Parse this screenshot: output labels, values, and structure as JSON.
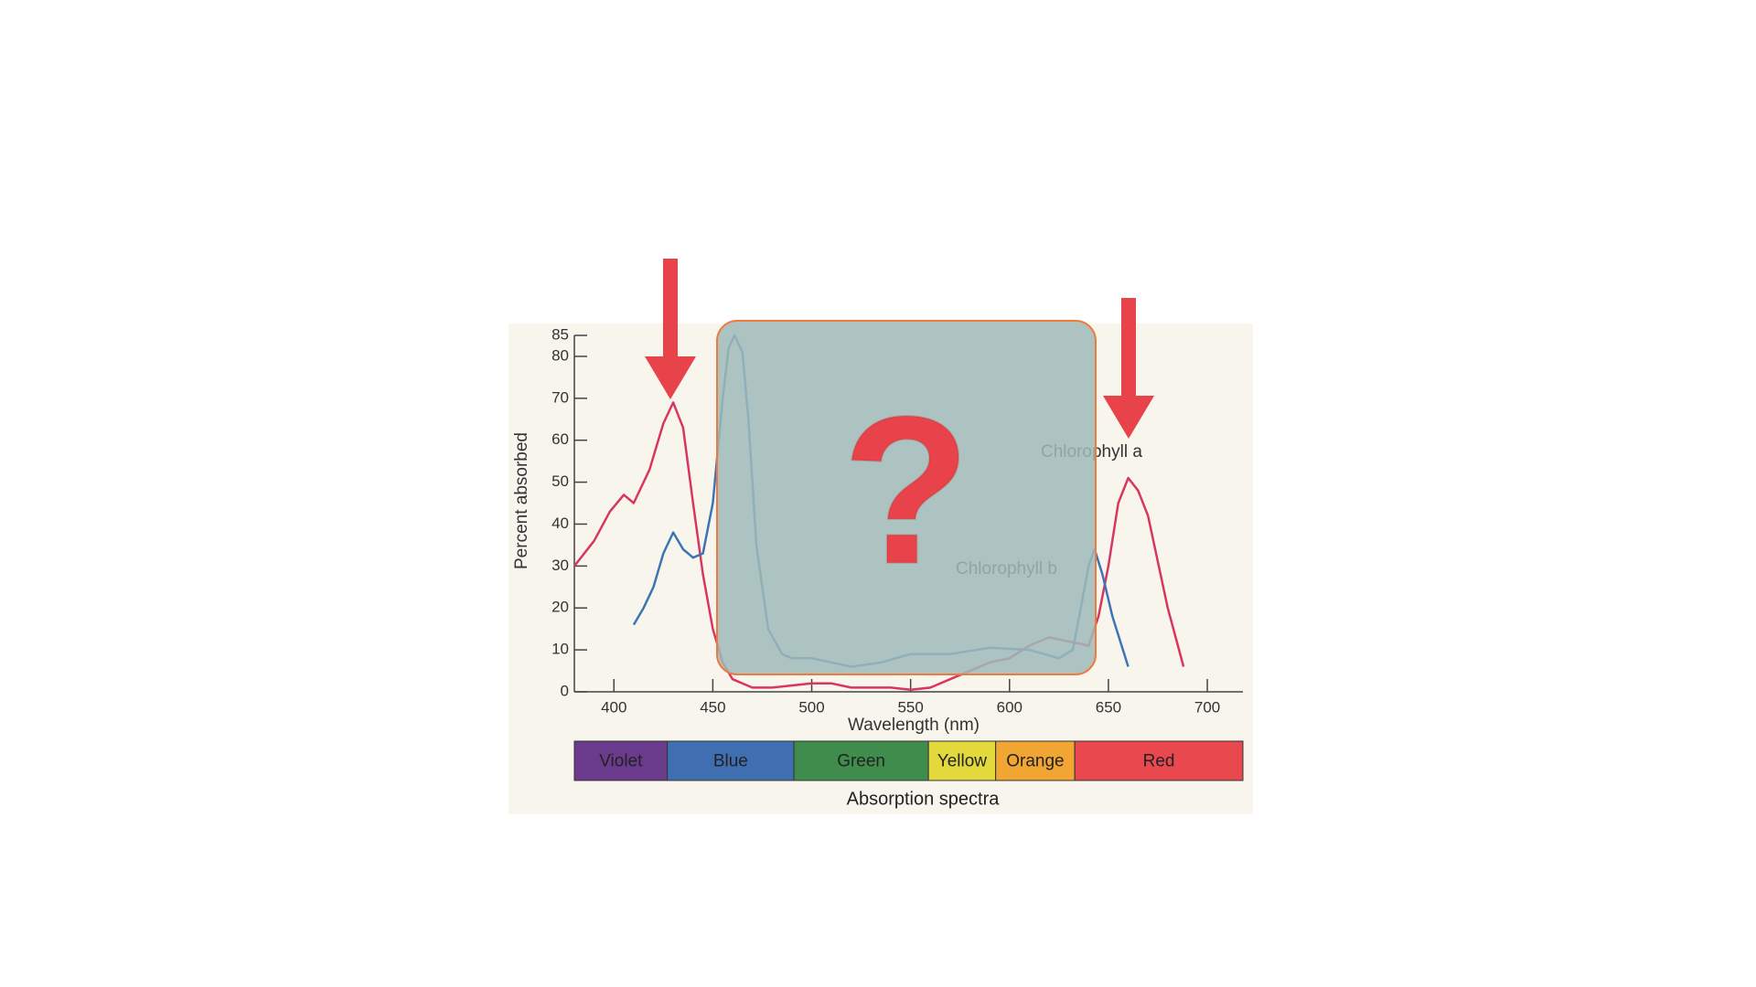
{
  "chart_data": {
    "type": "line",
    "x_label": "Wavelength (nm)",
    "y_label": "Percent absorbed",
    "caption": "Absorption spectra",
    "xlim": [
      380,
      718
    ],
    "ylim": [
      0,
      85
    ],
    "xticks": [
      400,
      450,
      500,
      550,
      600,
      650,
      700
    ],
    "yticks": [
      0,
      10,
      20,
      30,
      40,
      50,
      60,
      70,
      80,
      85
    ],
    "series": [
      {
        "name": "Chlorophyll a",
        "color": "#d9365f",
        "x": [
          380,
          390,
          398,
          405,
          410,
          418,
          425,
          430,
          435,
          440,
          445,
          450,
          455,
          460,
          470,
          480,
          500,
          510,
          520,
          540,
          550,
          560,
          570,
          580,
          590,
          600,
          610,
          620,
          630,
          640,
          645,
          650,
          655,
          660,
          665,
          670,
          680,
          688
        ],
        "values": [
          30,
          36,
          43,
          47,
          45,
          53,
          64,
          69,
          63,
          45,
          28,
          15,
          7,
          3,
          1,
          1,
          2,
          2,
          1,
          1,
          0.5,
          1,
          3,
          5,
          7,
          8,
          11,
          13,
          12,
          11,
          18,
          30,
          45,
          51,
          48,
          42,
          20,
          6
        ]
      },
      {
        "name": "Chlorophyll b",
        "color": "#3d74b5",
        "x": [
          410,
          415,
          420,
          425,
          430,
          435,
          440,
          445,
          450,
          455,
          458,
          461,
          465,
          468,
          472,
          478,
          485,
          490,
          500,
          510,
          520,
          535,
          550,
          570,
          590,
          610,
          625,
          632,
          636,
          640,
          643,
          647,
          652,
          660
        ],
        "values": [
          16,
          20,
          25,
          33,
          38,
          34,
          32,
          33,
          45,
          70,
          82,
          85,
          81,
          65,
          35,
          15,
          9,
          8,
          8,
          7,
          6,
          7,
          9,
          9,
          10.5,
          10,
          8,
          10,
          20,
          30,
          34,
          28,
          18,
          6
        ]
      }
    ],
    "bands": [
      {
        "label": "Violet",
        "start": 380,
        "end": 427,
        "color": "#6a3a8c"
      },
      {
        "label": "Blue",
        "start": 427,
        "end": 491,
        "color": "#3f6fb0"
      },
      {
        "label": "Green",
        "start": 491,
        "end": 559,
        "color": "#3f8c4c"
      },
      {
        "label": "Yellow",
        "start": 559,
        "end": 593,
        "color": "#e3d93c"
      },
      {
        "label": "Orange",
        "start": 593,
        "end": 633,
        "color": "#f1a533"
      },
      {
        "label": "Red",
        "start": 633,
        "end": 718,
        "color": "#e8484e"
      }
    ]
  },
  "overlay": {
    "symbol": "?"
  }
}
